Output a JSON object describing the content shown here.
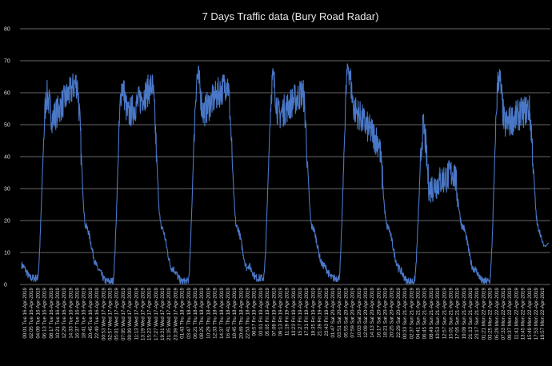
{
  "chart_data": {
    "type": "line",
    "title": "7 Days Traffic data (Bury Road Radar)",
    "xlabel": "",
    "ylabel": "",
    "ylim": [
      0,
      80
    ],
    "yticks": [
      0,
      10,
      20,
      30,
      40,
      50,
      60,
      70,
      80
    ],
    "grid": true,
    "legend": "none",
    "color": "#4a78c8",
    "xticks": [
      "00:01 Tue 16-Apr-2019",
      "02:05 Tue 16-Apr-2019",
      "04:09 Tue 16-Apr-2019",
      "06:13 Tue 16-Apr-2019",
      "08:17 Tue 16-Apr-2019",
      "10:21 Tue 16-Apr-2019",
      "12:29 Tue 16-Apr-2019",
      "14:33 Tue 16-Apr-2019",
      "16:37 Tue 16-Apr-2019",
      "18:41 Tue 16-Apr-2019",
      "20:45 Tue 16-Apr-2019",
      "22:49 Tue 16-Apr-2019",
      "00:53 Wed 17-Apr-2019",
      "02:57 Wed 17-Apr-2019",
      "05:01 Wed 17-Apr-2019",
      "07:05 Wed 17-Apr-2019",
      "09:09 Wed 17-Apr-2019",
      "11:13 Wed 17-Apr-2019",
      "13:19 Wed 17-Apr-2019",
      "15:23 Wed 17-Apr-2019",
      "17:27 Wed 17-Apr-2019",
      "19:31 Wed 17-Apr-2019",
      "21:35 Wed 17-Apr-2019",
      "23:39 Wed 17-Apr-2019",
      "01:43 Thu 18-Apr-2019",
      "03:47 Thu 18-Apr-2019",
      "06:21 Thu 18-Apr-2019",
      "08:25 Thu 18-Apr-2019",
      "10:29 Thu 18-Apr-2019",
      "12:33 Thu 18-Apr-2019",
      "14:37 Thu 18-Apr-2019",
      "16:41 Thu 18-Apr-2019",
      "18:45 Thu 18-Apr-2019",
      "20:49 Thu 18-Apr-2019",
      "22:53 Thu 18-Apr-2019",
      "00:57 Fri 19-Apr-2019",
      "03:01 Fri 19-Apr-2019",
      "05:05 Fri 19-Apr-2019",
      "07:09 Fri 19-Apr-2019",
      "09:13 Fri 19-Apr-2019",
      "11:19 Fri 19-Apr-2019",
      "13:23 Fri 19-Apr-2019",
      "15:27 Fri 19-Apr-2019",
      "17:31 Fri 19-Apr-2019",
      "19:35 Fri 19-Apr-2019",
      "21:39 Fri 19-Apr-2019",
      "23:43 Fri 19-Apr-2019",
      "01:47 Sat 20-Apr-2019",
      "03:51 Sat 20-Apr-2019",
      "05:55 Sat 20-Apr-2019",
      "07:59 Sat 20-Apr-2019",
      "10:03 Sat 20-Apr-2019",
      "12:09 Sat 20-Apr-2019",
      "14:13 Sat 20-Apr-2019",
      "16:17 Sat 20-Apr-2019",
      "18:21 Sat 20-Apr-2019",
      "20:25 Sat 20-Apr-2019",
      "22:29 Sat 20-Apr-2019",
      "00:33 Sun 21-Apr-2019",
      "02:37 Sun 21-Apr-2019",
      "04:41 Sun 21-Apr-2019",
      "06:45 Sun 21-Apr-2019",
      "08:49 Sun 21-Apr-2019",
      "10:53 Sun 21-Apr-2019",
      "12:57 Sun 21-Apr-2019",
      "15:01 Sun 21-Apr-2019",
      "17:05 Sun 21-Apr-2019",
      "19:09 Sun 21-Apr-2019",
      "21:13 Sun 21-Apr-2019",
      "23:17 Sun 21-Apr-2019",
      "01:21 Mon 22-Apr-2019",
      "03:25 Mon 22-Apr-2019",
      "05:29 Mon 22-Apr-2019",
      "07:33 Mon 22-Apr-2019",
      "09:37 Mon 22-Apr-2019",
      "11:41 Mon 22-Apr-2019",
      "13:45 Mon 22-Apr-2019",
      "15:49 Mon 22-Apr-2019",
      "17:53 Mon 22-Apr-2019",
      "19:57 Mon 22-Apr-2019"
    ],
    "series_shape": {
      "days": [
        "Tue 16-Apr-2019",
        "Wed 17-Apr-2019",
        "Thu 18-Apr-2019",
        "Fri 19-Apr-2019",
        "Sat 20-Apr-2019",
        "Sun 21-Apr-2019",
        "Mon 22-Apr-2019"
      ],
      "night_minimum": [
        2,
        1,
        1,
        2,
        2,
        1,
        1
      ],
      "morning_peak": [
        59,
        62,
        65,
        64,
        68,
        49,
        65
      ],
      "midday_level": [
        52,
        53,
        54,
        53,
        55,
        30,
        50
      ],
      "evening_peak": [
        63,
        62,
        63,
        60,
        45,
        35,
        55
      ],
      "end_value": 13
    }
  }
}
